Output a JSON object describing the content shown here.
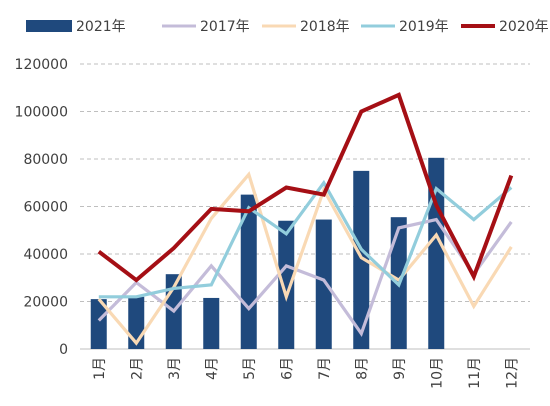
{
  "chart_data": {
    "type": "bar",
    "categories": [
      "1月",
      "2月",
      "3月",
      "4月",
      "5月",
      "6月",
      "7月",
      "8月",
      "9月",
      "10月",
      "11月",
      "12月"
    ],
    "ylim": [
      0,
      120000
    ],
    "yticks": [
      "0",
      "20000",
      "40000",
      "60000",
      "80000",
      "100000",
      "120000"
    ],
    "grid": "dashed horizontal",
    "legend_position": "top",
    "bar_series": {
      "name": "2021年",
      "color": "#1f497d",
      "values": [
        21000,
        22000,
        31500,
        21500,
        65000,
        54000,
        54500,
        75000,
        55500,
        80500,
        null,
        null
      ]
    },
    "line_series": [
      {
        "name": "2017年",
        "color": "#c4bcd9",
        "values": [
          12000,
          28000,
          16000,
          35000,
          17000,
          35000,
          29000,
          6500,
          51000,
          54500,
          31500,
          53500
        ]
      },
      {
        "name": "2018年",
        "color": "#f9d9b4",
        "values": [
          21000,
          2500,
          26000,
          55000,
          73500,
          22000,
          67000,
          38500,
          29000,
          48000,
          18000,
          43000
        ]
      },
      {
        "name": "2019年",
        "color": "#92cddc",
        "values": [
          22000,
          22000,
          25500,
          27000,
          59500,
          48500,
          70000,
          42000,
          27000,
          67500,
          54500,
          68000
        ]
      },
      {
        "name": "2020年",
        "color": "#a50f15",
        "values": [
          41000,
          29000,
          42500,
          59000,
          58000,
          68000,
          65000,
          100000,
          107000,
          60500,
          30500,
          73000
        ]
      }
    ]
  }
}
